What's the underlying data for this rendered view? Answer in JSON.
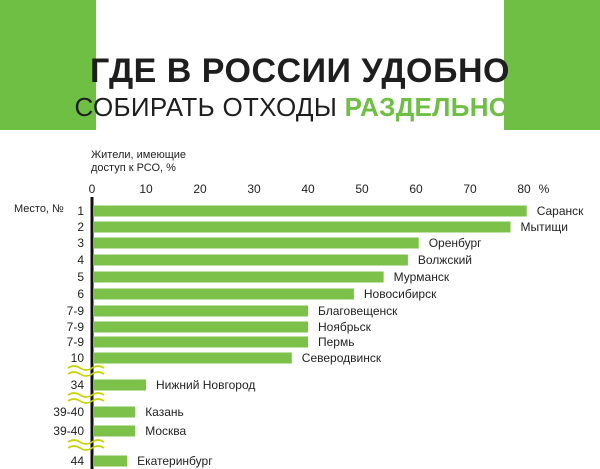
{
  "title": {
    "line1": "ГДЕ В РОССИИ УДОБНО",
    "line2_prefix": "СОБИРАТЬ ОТХОДЫ ",
    "line2_accent": "РАЗДЕЛЬНО?"
  },
  "colors": {
    "accent": "#6fbf44",
    "bar": "#7cc24a",
    "text": "#1e1e1e",
    "wavy": "#c8d200"
  },
  "chart_data": {
    "type": "bar",
    "orientation": "horizontal",
    "xlabel": "Жители, имеющие доступ к РСО, %",
    "xlabel_lines": [
      "Жители, имеющие",
      "доступ к РСО, %"
    ],
    "xunit": "%",
    "ylabel": "Место, №",
    "xlim": [
      0,
      80
    ],
    "xticks": [
      0,
      10,
      20,
      30,
      40,
      50,
      60,
      70,
      80
    ],
    "rows": [
      {
        "rank": "1",
        "city": "Саранск",
        "value": 80.5
      },
      {
        "rank": "2",
        "city": "Мытищи",
        "value": 77.5
      },
      {
        "rank": "3",
        "city": "Оренбург",
        "value": 60.5
      },
      {
        "rank": "4",
        "city": "Волжский",
        "value": 58.5
      },
      {
        "rank": "5",
        "city": "Мурманск",
        "value": 54
      },
      {
        "rank": "6",
        "city": "Новосибирск",
        "value": 48.5
      },
      {
        "rank": "7-9",
        "city": "Благовещенск",
        "value": 40
      },
      {
        "rank": "7-9",
        "city": "Ноябрьск",
        "value": 40
      },
      {
        "rank": "7-9",
        "city": "Пермь",
        "value": 40
      },
      {
        "rank": "10",
        "city": "Северодвинск",
        "value": 37
      },
      {
        "rank": "34",
        "city": "Нижний Новгород",
        "value": 10
      },
      {
        "rank": "39-40",
        "city": "Казань",
        "value": 8
      },
      {
        "rank": "39-40",
        "city": "Москва",
        "value": 8
      },
      {
        "rank": "44",
        "city": "Екатеринбург",
        "value": 6.5
      }
    ],
    "breaks_after_ranks": [
      "10",
      "34",
      "39-40"
    ]
  }
}
